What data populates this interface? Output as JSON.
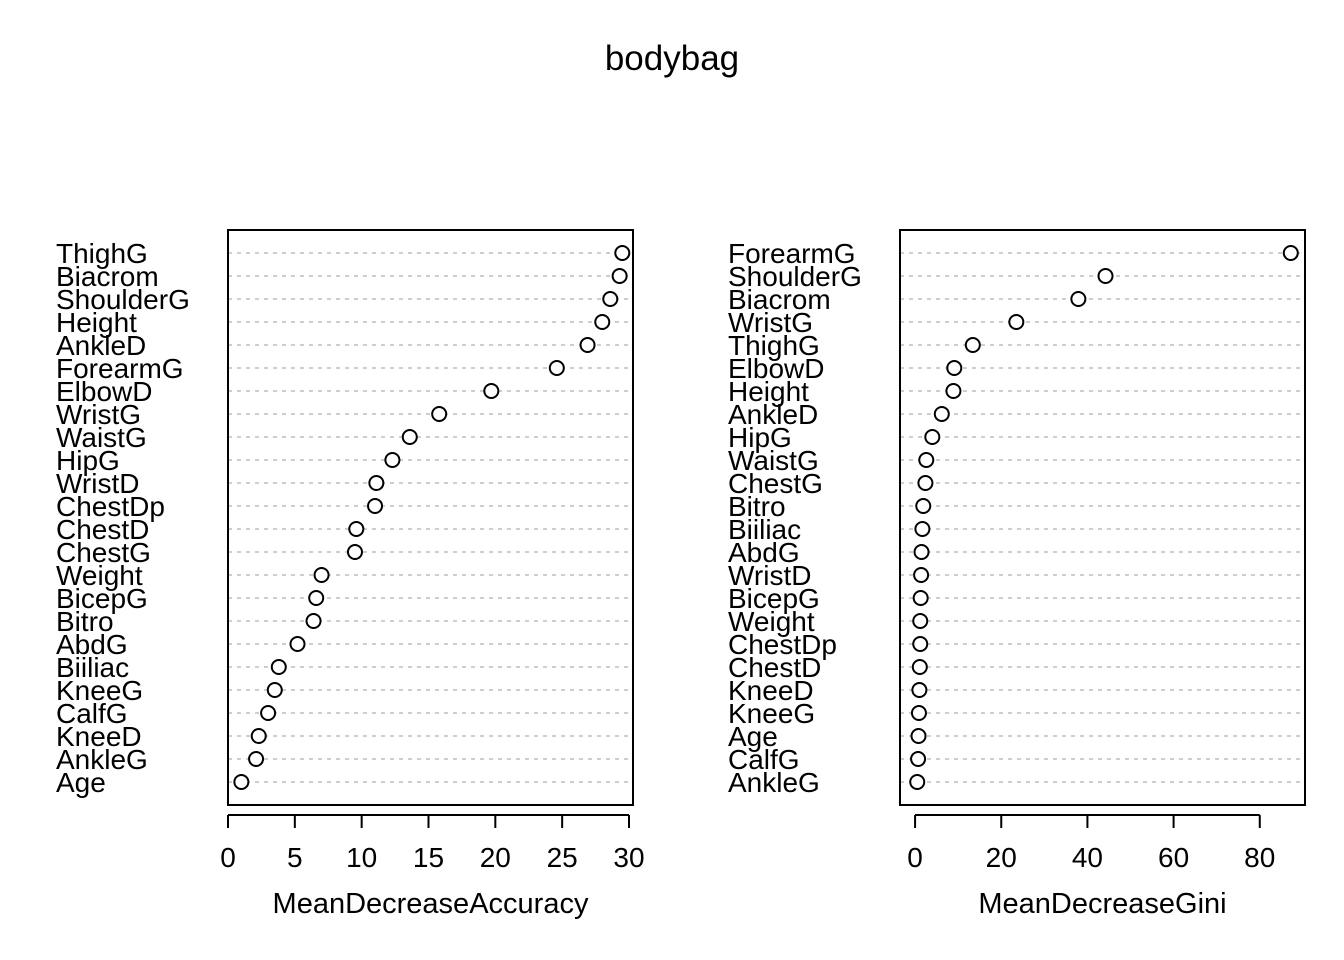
{
  "title": "bodybag",
  "chart_data": [
    {
      "type": "scatter",
      "xlabel": "MeanDecreaseAccuracy",
      "xticks": [
        0,
        5,
        10,
        15,
        20,
        25,
        30
      ],
      "xlim": [
        0,
        30.3
      ],
      "grid": "dotted horizontal guide per variable",
      "categories": [
        "ThighG",
        "Biacrom",
        "ShoulderG",
        "Height",
        "AnkleD",
        "ForearmG",
        "ElbowD",
        "WristG",
        "WaistG",
        "HipG",
        "WristD",
        "ChestDp",
        "ChestD",
        "ChestG",
        "Weight",
        "BicepG",
        "Bitro",
        "AbdG",
        "Biiliac",
        "KneeG",
        "CalfG",
        "KneeD",
        "AnkleG",
        "Age"
      ],
      "values": [
        29.5,
        29.3,
        28.6,
        28.0,
        26.9,
        24.6,
        19.7,
        15.8,
        13.6,
        12.3,
        11.1,
        11.0,
        9.6,
        9.5,
        7.0,
        6.6,
        6.4,
        5.2,
        3.8,
        3.5,
        3.0,
        2.3,
        2.1,
        1.0
      ]
    },
    {
      "type": "scatter",
      "xlabel": "MeanDecreaseGini",
      "xticks": [
        0,
        20,
        40,
        60,
        80
      ],
      "xlim": [
        -3.5,
        90.5
      ],
      "grid": "dotted horizontal guide per variable",
      "categories": [
        "ForearmG",
        "ShoulderG",
        "Biacrom",
        "WristG",
        "ThighG",
        "ElbowD",
        "Height",
        "AnkleD",
        "HipG",
        "WaistG",
        "ChestG",
        "Bitro",
        "Biiliac",
        "AbdG",
        "WristD",
        "BicepG",
        "Weight",
        "ChestDp",
        "ChestD",
        "KneeD",
        "KneeG",
        "Age",
        "CalfG",
        "AnkleG"
      ],
      "values": [
        87.2,
        44.2,
        37.9,
        23.5,
        13.4,
        9.1,
        8.9,
        6.2,
        4.0,
        2.6,
        2.4,
        1.9,
        1.7,
        1.5,
        1.4,
        1.3,
        1.2,
        1.2,
        1.1,
        1.0,
        0.9,
        0.8,
        0.7,
        0.5
      ]
    }
  ]
}
